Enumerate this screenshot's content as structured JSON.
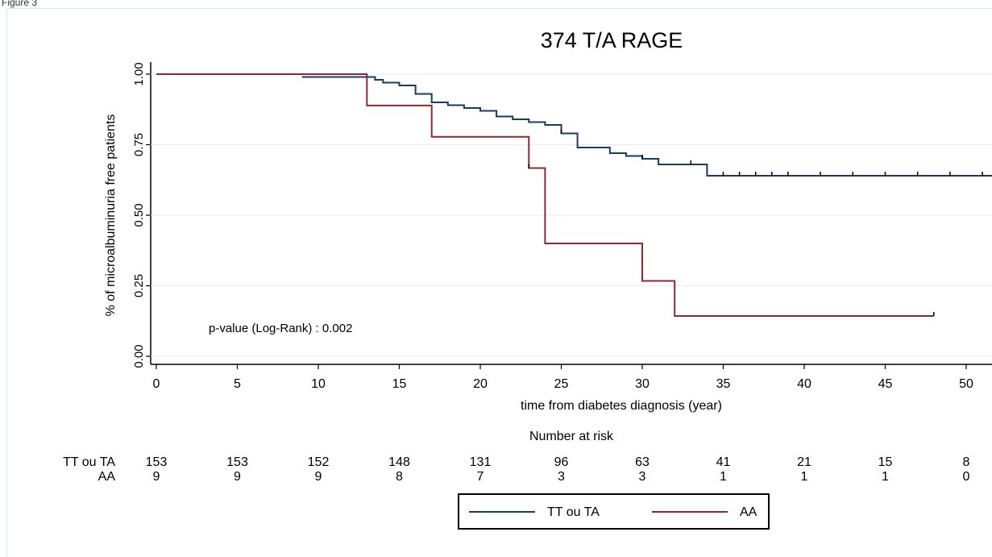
{
  "page": {
    "label": "Figure 3"
  },
  "chart_data": {
    "type": "line",
    "subtype": "kaplan-meier",
    "title": "374 T/A RAGE",
    "xlabel": "time from diabetes diagnosis (year)",
    "ylabel": "% of microalbuminuria free patients",
    "xlim": [
      0,
      50
    ],
    "ylim": [
      0,
      1
    ],
    "xticks": [
      0,
      5,
      10,
      15,
      20,
      25,
      30,
      35,
      40,
      45,
      50
    ],
    "xtick_labels": [
      "0",
      "5",
      "10",
      "15",
      "20",
      "25",
      "30",
      "35",
      "40",
      "45",
      "50"
    ],
    "yticks": [
      0,
      0.25,
      0.5,
      0.75,
      1.0
    ],
    "ytick_labels": [
      "0.00",
      "0.25",
      "0.50",
      "0.75",
      "1.00"
    ],
    "grid": true,
    "annotation": "p-value (Log-Rank) : 0.002",
    "series": [
      {
        "name": "TT ou TA",
        "color": "#1b3a5c",
        "step_x": [
          9,
          13,
          13.5,
          14,
          15,
          16,
          17,
          18,
          19,
          20,
          21,
          22,
          23,
          24,
          25,
          26,
          27,
          28,
          29,
          30,
          31,
          34,
          52
        ],
        "step_y": [
          0.99,
          0.99,
          0.98,
          0.97,
          0.96,
          0.93,
          0.9,
          0.89,
          0.88,
          0.87,
          0.85,
          0.84,
          0.83,
          0.82,
          0.79,
          0.74,
          0.74,
          0.72,
          0.71,
          0.7,
          0.68,
          0.64,
          0.64
        ],
        "censor_x": [
          25,
          30,
          33,
          35,
          36,
          37,
          38,
          39,
          41,
          43,
          45,
          47,
          49,
          51
        ]
      },
      {
        "name": "AA",
        "color": "#8b2a2f",
        "step_x": [
          0,
          13,
          17,
          23,
          24,
          30,
          32,
          48
        ],
        "step_y": [
          1.0,
          0.889,
          0.778,
          0.667,
          0.4,
          0.267,
          0.143,
          0.143
        ],
        "censor_x": [
          23,
          48
        ]
      }
    ],
    "risk_table": {
      "title": "Number at risk",
      "times": [
        0,
        5,
        10,
        15,
        20,
        25,
        30,
        35,
        40,
        45,
        50
      ],
      "rows": [
        {
          "label": "TT ou TA",
          "values": [
            "153",
            "153",
            "152",
            "148",
            "131",
            "96",
            "63",
            "41",
            "21",
            "15",
            "8"
          ]
        },
        {
          "label": "AA",
          "values": [
            "9",
            "9",
            "9",
            "8",
            "7",
            "3",
            "3",
            "1",
            "1",
            "1",
            "0"
          ]
        }
      ]
    },
    "legend_position": "bottom"
  }
}
